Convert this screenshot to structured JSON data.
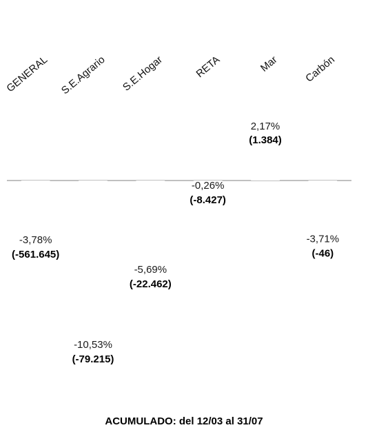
{
  "chart_data": {
    "type": "bar",
    "categories": [
      "GENERAL",
      "S.E.Agrario",
      "S.E.Hogar",
      "RETA",
      "Mar",
      "Carbón"
    ],
    "series": [
      {
        "values": [
          -3.78,
          -10.53,
          -5.69,
          -0.26,
          2.17,
          -3.71
        ],
        "percent_labels": [
          "-3,78%",
          "-10,53%",
          "-5,69%",
          "-0,26%",
          "2,17%",
          "-3,71%"
        ],
        "absolute_values": [
          -561645,
          -79215,
          -22462,
          -8427,
          1384,
          -46
        ],
        "absolute_labels": [
          "(-561.645)",
          "(-79.215)",
          "(-22.462)",
          "(-8.427)",
          "(1.384)",
          "(-46)"
        ],
        "color": "#ffffff"
      }
    ],
    "ylim": [
      -12,
      4
    ],
    "grid": false,
    "baseline_color": "#808080"
  },
  "footer": "ACUMULADO: del 12/03 al 31/07"
}
